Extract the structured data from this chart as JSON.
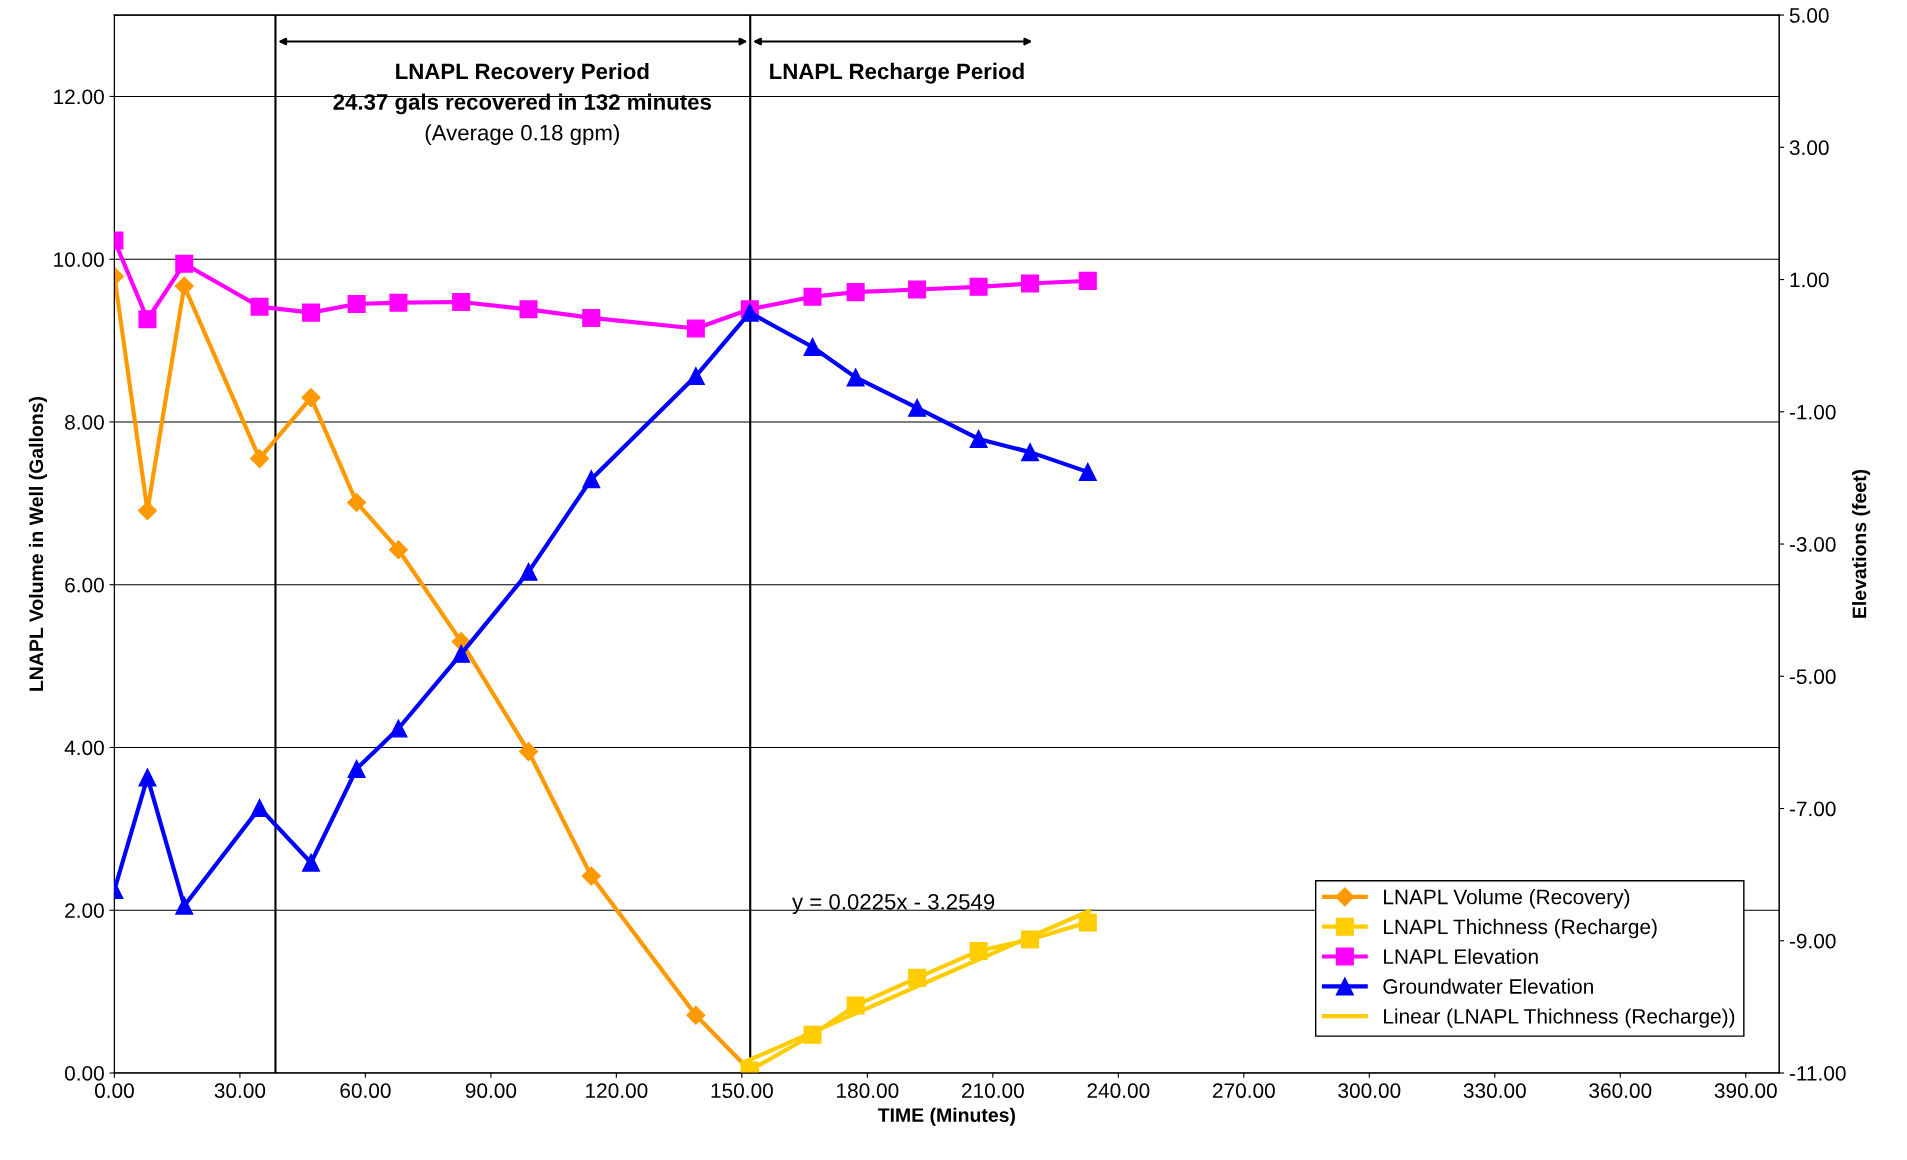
{
  "chart_data": {
    "type": "line",
    "xlabel": "TIME (Minutes)",
    "ylabel": "LNAPL Volume in Well (Gallons)",
    "y2label": "Elevations (feet)",
    "xlim": [
      0,
      398
    ],
    "xticks": [
      {
        "value": 0,
        "label": "0.00"
      },
      {
        "value": 30,
        "label": "30.00"
      },
      {
        "value": 60,
        "label": "60.00"
      },
      {
        "value": 90,
        "label": "90.00"
      },
      {
        "value": 120,
        "label": "120.00"
      },
      {
        "value": 150,
        "label": "150.00"
      },
      {
        "value": 180,
        "label": "180.00"
      },
      {
        "value": 210,
        "label": "210.00"
      },
      {
        "value": 240,
        "label": "240.00"
      },
      {
        "value": 270,
        "label": "270.00"
      },
      {
        "value": 300,
        "label": "300.00"
      },
      {
        "value": 330,
        "label": "330.00"
      },
      {
        "value": 360,
        "label": "360.00"
      },
      {
        "value": 390,
        "label": "390.00"
      }
    ],
    "ylim": [
      0,
      13
    ],
    "yticks": [
      {
        "value": 0,
        "label": "0.00"
      },
      {
        "value": 2,
        "label": "2.00"
      },
      {
        "value": 4,
        "label": "4.00"
      },
      {
        "value": 6,
        "label": "6.00"
      },
      {
        "value": 8,
        "label": "8.00"
      },
      {
        "value": 10,
        "label": "10.00"
      },
      {
        "value": 12,
        "label": "12.00"
      }
    ],
    "y2lim": [
      -11,
      5
    ],
    "y2ticks": [
      {
        "value": -11,
        "label": "-11.00"
      },
      {
        "value": -9,
        "label": "-9.00"
      },
      {
        "value": -7,
        "label": "-7.00"
      },
      {
        "value": -5,
        "label": "-5.00"
      },
      {
        "value": -3,
        "label": "-3.00"
      },
      {
        "value": -1,
        "label": "-1.00"
      },
      {
        "value": 1,
        "label": "1.00"
      },
      {
        "value": 3,
        "label": "3.00"
      },
      {
        "value": 5,
        "label": "5.00"
      }
    ],
    "grid": "y",
    "legend": "bottom right",
    "line_style": "solid",
    "series": [
      {
        "name": "LNAPL Volume (Recovery)",
        "color": "#ff9900",
        "marker": "diamond",
        "x": [
          0,
          7.9,
          16.7,
          34.7,
          47.0,
          57.9,
          67.9,
          82.9,
          99.0,
          114.0,
          139.0,
          151.9
        ],
        "values": [
          9.79,
          6.91,
          9.67,
          7.55,
          8.3,
          7.01,
          6.43,
          5.3,
          3.95,
          2.42,
          0.71,
          0.03
        ]
      },
      {
        "name": "LNAPL Thichness (Recharge)",
        "color": "#ffcc00",
        "marker": "square",
        "x": [
          151.9,
          166.9,
          177.2,
          191.9,
          206.6,
          218.9,
          232.7
        ],
        "values": [
          0.03,
          0.47,
          0.83,
          1.17,
          1.5,
          1.64,
          1.85
        ]
      },
      {
        "name": "LNAPL Elevation",
        "color": "#ff00ff",
        "marker": "square",
        "axis": "y2",
        "x": [
          0,
          7.9,
          16.7,
          34.7,
          47.0,
          57.9,
          67.9,
          82.9,
          99.0,
          114.0,
          139.0,
          151.9,
          166.9,
          177.2,
          191.9,
          206.6,
          218.9,
          232.7
        ],
        "values": [
          1.59,
          0.4,
          1.24,
          0.59,
          0.5,
          0.63,
          0.65,
          0.66,
          0.55,
          0.42,
          0.26,
          0.55,
          0.74,
          0.81,
          0.85,
          0.89,
          0.94,
          0.98
        ]
      },
      {
        "name": "Groundwater Elevation",
        "color": "#0000ff",
        "marker": "triangle",
        "axis": "y2",
        "x": [
          0,
          7.9,
          16.7,
          34.7,
          47.0,
          57.9,
          67.9,
          82.9,
          99.0,
          114.0,
          139.0,
          151.9,
          166.9,
          177.2,
          191.9,
          206.6,
          218.9,
          232.7
        ],
        "values": [
          -8.23,
          -6.53,
          -8.47,
          -6.99,
          -7.82,
          -6.4,
          -5.79,
          -4.66,
          -3.42,
          -2.02,
          -0.46,
          0.5,
          -0.02,
          -0.48,
          -0.94,
          -1.41,
          -1.61,
          -1.91
        ]
      },
      {
        "name": "Linear (LNAPL Thichness (Recharge))",
        "color": "#ffcc00",
        "marker": "none",
        "x": [
          150,
          233
        ],
        "values": [
          0.12,
          1.99
        ]
      }
    ],
    "ref_lines": [
      {
        "axis": "x",
        "value": 38.5,
        "color": "#000000"
      },
      {
        "axis": "x",
        "value": 152,
        "color": "#000000"
      }
    ],
    "annotations": [
      "LNAPL Recovery Period",
      "24.37 gals recovered in 132 minutes",
      "(Average 0.18 gpm)",
      "LNAPL Recharge Period",
      "y = 0.0225x - 3.2549"
    ]
  }
}
